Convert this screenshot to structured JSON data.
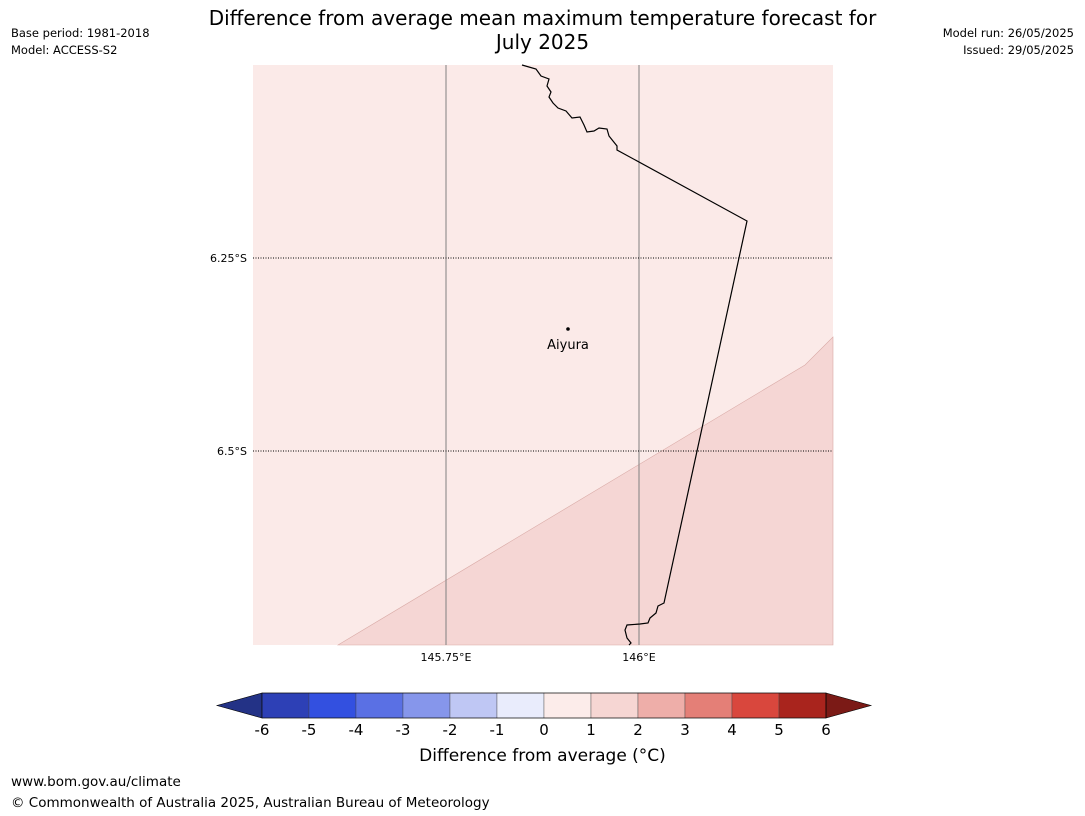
{
  "header": {
    "title_line1": "Difference from average mean maximum temperature forecast for",
    "title_line2": "July 2025",
    "base_period": "Base period: 1981-2018",
    "model": "Model: ACCESS-S2",
    "model_run": "Model run: 26/05/2025",
    "issued": "Issued: 29/05/2025"
  },
  "map": {
    "lat_labels": [
      "6.25°S",
      "6.5°S"
    ],
    "lon_labels": [
      "145.75°E",
      "146°E"
    ],
    "place": {
      "name": "Aiyura"
    },
    "fill_colors": {
      "band_0_to_1": "#fbeae8",
      "band_1_to_2": "#f5d6d4"
    }
  },
  "colorbar": {
    "ticks": [
      "-6",
      "-5",
      "-4",
      "-3",
      "-2",
      "-1",
      "0",
      "1",
      "2",
      "3",
      "4",
      "5",
      "6"
    ],
    "colors": [
      "#233286",
      "#2d40b6",
      "#3350e0",
      "#5a70e4",
      "#8696eb",
      "#bfc7f4",
      "#e9ecfc",
      "#fcecea",
      "#f6d6d3",
      "#eeaea9",
      "#e47f77",
      "#d9473d",
      "#a9241d",
      "#7b1a16"
    ],
    "label": "Difference from average (°C)"
  },
  "footer": {
    "url": "www.bom.gov.au/climate",
    "copyright": "© Commonwealth of Australia 2025, Australian Bureau of Meteorology"
  }
}
